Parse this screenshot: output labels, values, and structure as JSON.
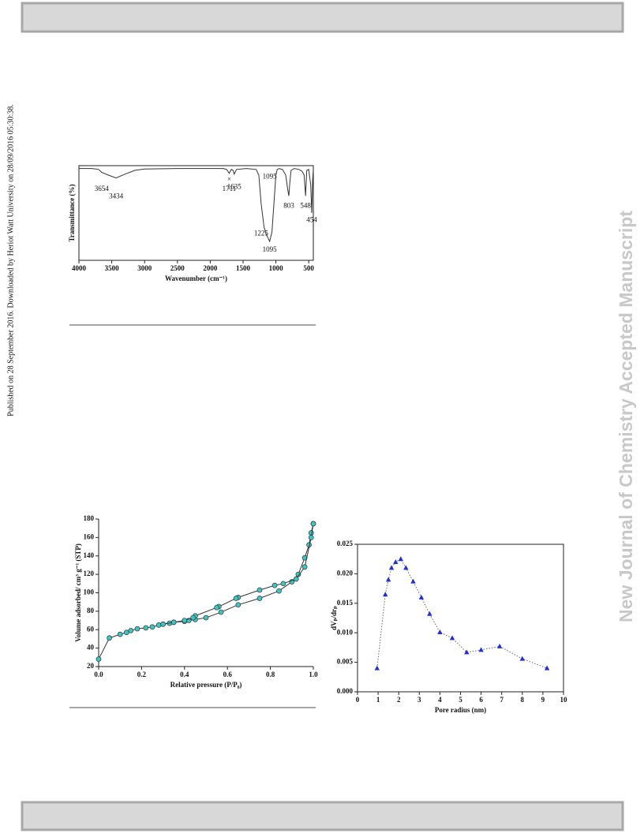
{
  "side_note": "Published on 28 September 2016. Downloaded by Heriot Watt University on 28/09/2016 05:30:38.",
  "watermark": "New Journal of Chemistry Accepted Manuscript",
  "chart_data": [
    {
      "type": "line",
      "x_label": "Wavenumber (cm⁻¹)",
      "y_label": "Transmittance (%)",
      "xlim": [
        4000,
        430
      ],
      "xticks": [
        4000,
        3500,
        3000,
        2500,
        2000,
        1500,
        1000,
        500
      ],
      "ylim": [
        0,
        100
      ],
      "series": [
        {
          "color": "#333333",
          "x": [
            4000,
            3800,
            3700,
            3654,
            3550,
            3434,
            3300,
            3150,
            3000,
            2500,
            2000,
            1800,
            1750,
            1711,
            1680,
            1650,
            1635,
            1600,
            1450,
            1300,
            1260,
            1225,
            1180,
            1150,
            1095,
            1060,
            1030,
            1000,
            980,
            950,
            900,
            850,
            820,
            803,
            790,
            770,
            720,
            650,
            600,
            570,
            548,
            530,
            500,
            470,
            454,
            440,
            430
          ],
          "values": [
            97,
            97,
            96,
            93,
            90,
            87,
            91,
            95,
            96.5,
            97,
            97,
            97,
            96,
            92,
            96,
            95,
            91,
            96,
            97,
            96,
            90,
            60,
            35,
            28,
            20,
            30,
            60,
            90,
            96,
            97,
            96,
            90,
            75,
            68,
            80,
            95,
            97,
            96,
            94,
            90,
            68,
            95,
            96,
            80,
            50,
            85,
            96
          ]
        }
      ],
      "annotations": [
        {
          "text": "3654",
          "x": 3654,
          "y": 75
        },
        {
          "text": "3434",
          "x": 3434,
          "y": 67
        },
        {
          "text": "×",
          "x": 1711,
          "y": 85
        },
        {
          "text": "1711",
          "x": 1711,
          "y": 75
        },
        {
          "text": "1635",
          "x": 1635,
          "y": 77
        },
        {
          "text": "1095",
          "x": 1095,
          "y": 88
        },
        {
          "text": "1225",
          "x": 1225,
          "y": 28
        },
        {
          "text": "1095",
          "x": 1095,
          "y": 11
        },
        {
          "text": "803",
          "x": 803,
          "y": 57
        },
        {
          "text": "548",
          "x": 548,
          "y": 57
        },
        {
          "text": "454",
          "x": 454,
          "y": 42
        }
      ]
    },
    {
      "type": "line",
      "x_label": "Relative pressure (P/P₀)",
      "y_label": "Volume adsorbed/ cm³ g⁻¹ (STP)",
      "xlim": [
        0,
        1
      ],
      "xticks": [
        {
          "value": 0,
          "label": "0.0"
        },
        0.2,
        0.4,
        0.6,
        0.8,
        {
          "value": 1,
          "label": "1.0"
        }
      ],
      "ylim": [
        20,
        180
      ],
      "yticks": [
        20,
        40,
        60,
        80,
        100,
        120,
        140,
        160,
        180
      ],
      "marker": "circle",
      "series": [
        {
          "color": "#3cc6c6",
          "x": [
            0.0,
            0.05,
            0.1,
            0.13,
            0.15,
            0.18,
            0.22,
            0.25,
            0.28,
            0.3,
            0.33,
            0.35,
            0.4,
            0.42,
            0.45,
            0.5,
            0.57,
            0.65,
            0.75,
            0.84,
            0.9,
            0.93,
            0.96,
            0.98,
            0.99,
            1.0
          ],
          "values": [
            28,
            51,
            55,
            57,
            59,
            61,
            62,
            63,
            65,
            66,
            67,
            68,
            69,
            70,
            71,
            73,
            79,
            87,
            94,
            102,
            112,
            120,
            138,
            152,
            165,
            175
          ]
        },
        {
          "color": "#3cc6c6",
          "x": [
            1.0,
            0.99,
            0.96,
            0.92,
            0.86,
            0.82,
            0.75,
            0.65,
            0.64,
            0.56,
            0.55,
            0.45,
            0.44,
            0.4,
            0.35,
            0.3
          ],
          "values": [
            175,
            160,
            128,
            115,
            110,
            108,
            103,
            95,
            94,
            85,
            84,
            75,
            73,
            70,
            68,
            66
          ]
        }
      ]
    },
    {
      "type": "line",
      "x_label": "Pore radius (nm)",
      "y_label": "dVₚ/drₚ",
      "xlim": [
        0,
        10
      ],
      "xticks": [
        0,
        1,
        2,
        3,
        4,
        5,
        6,
        7,
        8,
        9,
        10
      ],
      "ylim": [
        0,
        0.025
      ],
      "yticks": [
        {
          "value": 0,
          "label": "0.000"
        },
        {
          "value": 0.005,
          "label": "0.005"
        },
        {
          "value": 0.01,
          "label": "0.010"
        },
        {
          "value": 0.015,
          "label": "0.015"
        },
        {
          "value": 0.02,
          "label": "0.020"
        },
        {
          "value": 0.025,
          "label": "0.025"
        }
      ],
      "marker": "triangle",
      "line_style": "dotted",
      "series": [
        {
          "color": "#1f2fd6",
          "x": [
            0.95,
            1.35,
            1.5,
            1.65,
            1.85,
            2.1,
            2.35,
            2.7,
            3.1,
            3.5,
            4.0,
            4.6,
            5.3,
            6.0,
            6.9,
            8.0,
            9.2
          ],
          "values": [
            0.004,
            0.0165,
            0.019,
            0.021,
            0.022,
            0.0225,
            0.021,
            0.0187,
            0.016,
            0.0132,
            0.0101,
            0.0091,
            0.0067,
            0.0071,
            0.0077,
            0.0056,
            0.004
          ]
        }
      ]
    }
  ]
}
